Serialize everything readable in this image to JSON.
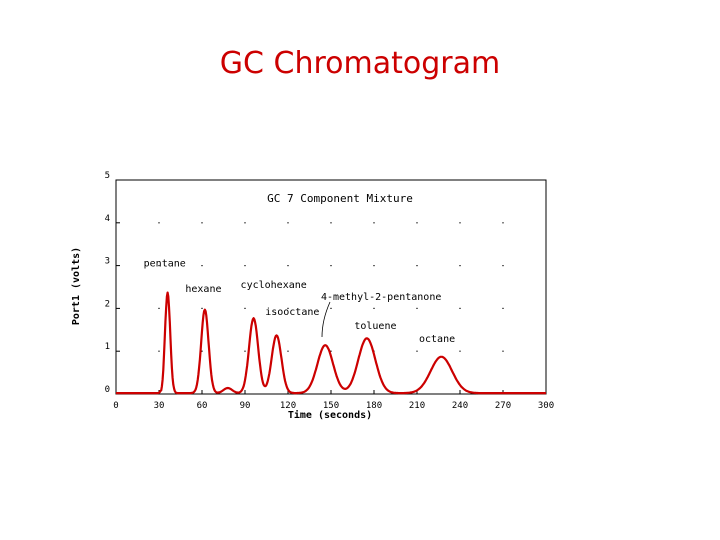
{
  "slide": {
    "title": "GC Chromatogram"
  },
  "chart_data": {
    "type": "line",
    "title": "GC 7 Component Mixture",
    "xlabel": "Time (seconds)",
    "ylabel": "Port1 (volts)",
    "xlim": [
      0,
      300
    ],
    "ylim": [
      0,
      5
    ],
    "x_ticks": [
      0,
      30,
      60,
      90,
      120,
      150,
      180,
      210,
      240,
      270,
      300
    ],
    "y_ticks": [
      0,
      1,
      2,
      3,
      4,
      5
    ],
    "grid": "dotted",
    "line_color": "#cc0000",
    "series": [
      {
        "baseline": 0.02,
        "peaks": [
          {
            "label": "pentane",
            "time": 36,
            "height": 2.35,
            "width": 1.8
          },
          {
            "label": "hexane",
            "time": 62,
            "height": 1.95,
            "width": 2.6
          },
          {
            "label": "",
            "time": 78,
            "height": 0.12,
            "width": 3.0
          },
          {
            "label": "cyclohexane",
            "time": 96,
            "height": 1.75,
            "width": 3.2
          },
          {
            "label": "isooctane",
            "time": 112,
            "height": 1.35,
            "width": 3.4
          },
          {
            "label": "4-methyl-2-pentanone",
            "time": 146,
            "height": 1.12,
            "width": 5.5
          },
          {
            "label": "toluene",
            "time": 175,
            "height": 1.28,
            "width": 6.0
          },
          {
            "label": "octane",
            "time": 227,
            "height": 0.85,
            "width": 7.5
          }
        ]
      }
    ],
    "annotations": [
      {
        "text": "pentane",
        "x": 34,
        "y": 2.98
      },
      {
        "text": "hexane",
        "x": 61,
        "y": 2.38
      },
      {
        "text": "cyclohexane",
        "x": 110,
        "y": 2.48
      },
      {
        "text": "isooctane",
        "x": 123,
        "y": 1.85
      },
      {
        "text": "4-methyl-2-pentanone",
        "x": 185,
        "y": 2.2
      },
      {
        "text": "toluene",
        "x": 181,
        "y": 1.52
      },
      {
        "text": "octane",
        "x": 224,
        "y": 1.22
      }
    ]
  }
}
